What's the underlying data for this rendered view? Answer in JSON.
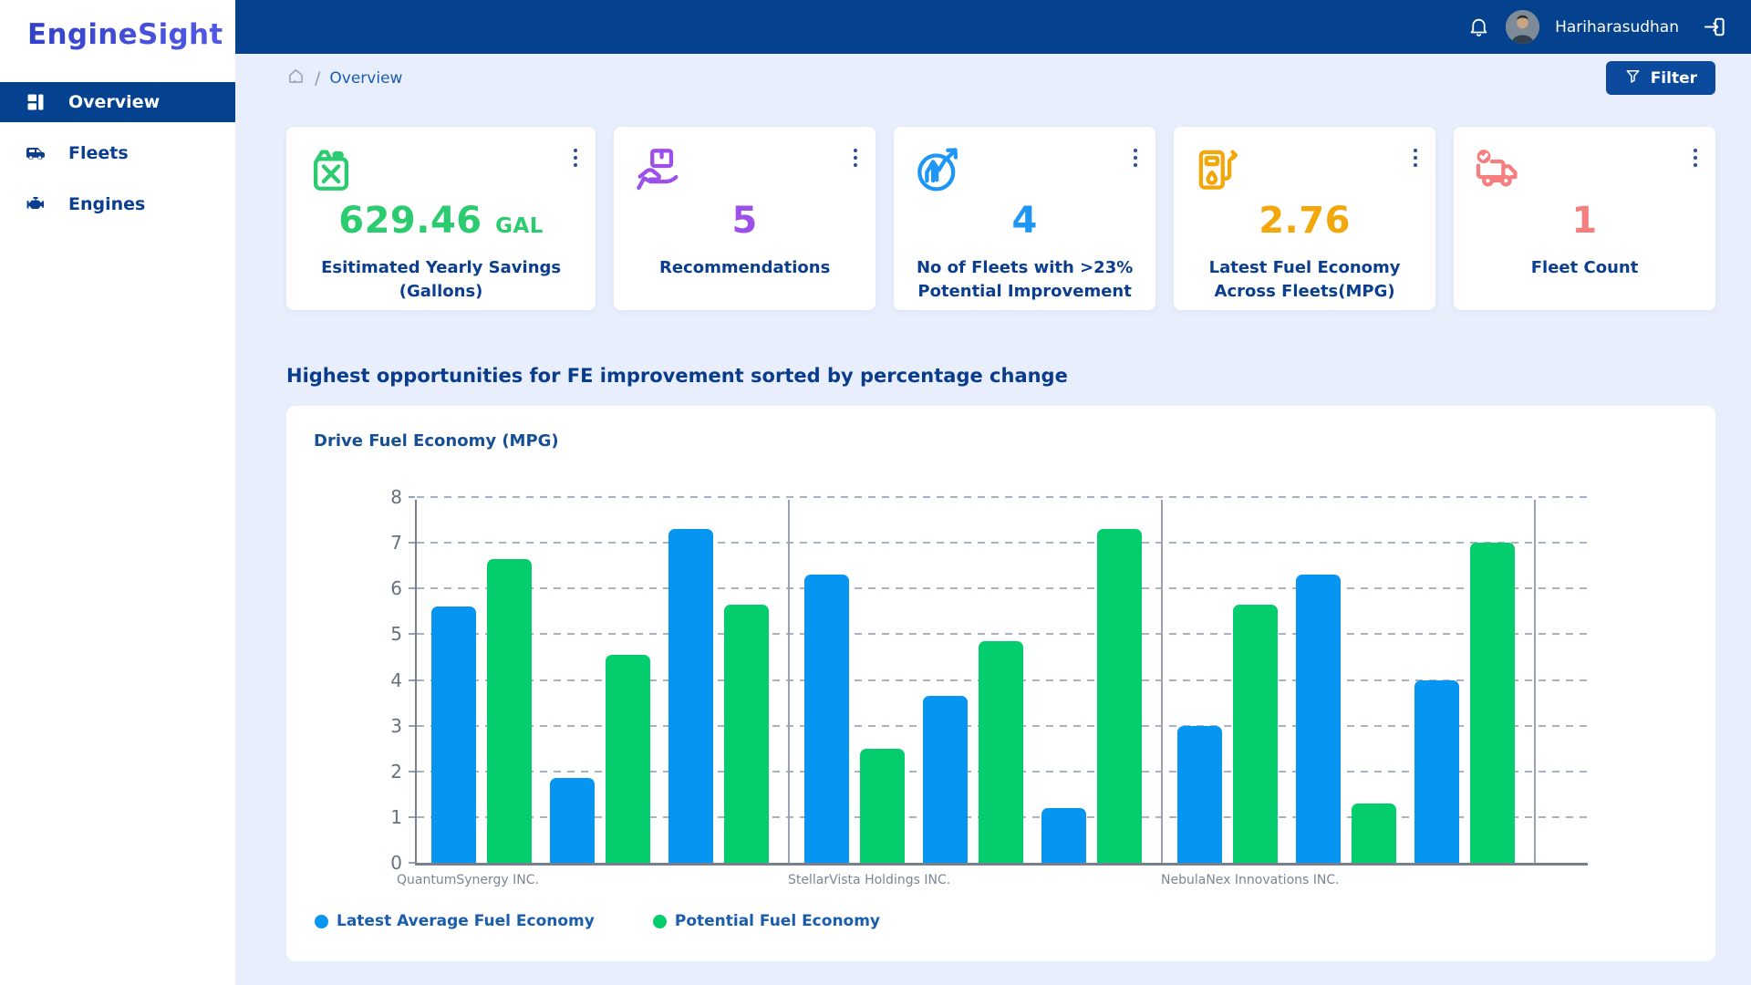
{
  "app": {
    "name": "EngineSight"
  },
  "header": {
    "user_name": "Hariharasudhan"
  },
  "sidebar": {
    "items": [
      {
        "label": "Overview",
        "active": true
      },
      {
        "label": "Fleets",
        "active": false
      },
      {
        "label": "Engines",
        "active": false
      }
    ]
  },
  "breadcrumb": {
    "separator": "/",
    "current": "Overview"
  },
  "toolbar": {
    "filter_label": "Filter"
  },
  "stat_cards": [
    {
      "value": "629.46",
      "unit": "GAL",
      "label": "Esitimated Yearly Savings (Gallons)",
      "color": "#2BCB6F",
      "icon": "fuel-can-icon"
    },
    {
      "value": "5",
      "unit": "",
      "label": "Recommendations",
      "color": "#9C4FE9",
      "icon": "hand-box-icon"
    },
    {
      "value": "4",
      "unit": "",
      "label": "No of Fleets with >23% Potential Improvement",
      "color": "#1E96F5",
      "icon": "growth-chart-icon"
    },
    {
      "value": "2.76",
      "unit": "",
      "label": "Latest Fuel Economy Across Fleets(MPG)",
      "color": "#F2A70B",
      "icon": "fuel-pump-icon"
    },
    {
      "value": "1",
      "unit": "",
      "label": "Fleet Count",
      "color": "#F57F7F",
      "icon": "truck-check-icon"
    }
  ],
  "section": {
    "heading": "Highest opportunities for FE improvement sorted by percentage change"
  },
  "chart_data": {
    "type": "bar",
    "title": "Drive Fuel Economy (MPG)",
    "xlabel": "",
    "ylabel": "",
    "ylim": [
      0,
      8
    ],
    "ytick_step": 1,
    "grid": "horizontal-dashed",
    "legend_position": "bottom-left",
    "series": [
      {
        "name": "Latest Average Fuel Economy",
        "color": "#0795F2"
      },
      {
        "name": "Potential Fuel Economy",
        "color": "#03CD6C"
      }
    ],
    "groups": [
      {
        "label": "QuantumSynergy INC.",
        "pairs": [
          [
            5.6,
            6.65
          ],
          [
            1.85,
            4.55
          ],
          [
            7.3,
            5.65
          ]
        ]
      },
      {
        "label": "StellarVista Holdings INC.",
        "pairs": [
          [
            6.3,
            2.5
          ],
          [
            3.65,
            4.85
          ],
          [
            1.2,
            7.3
          ]
        ]
      },
      {
        "label": "NebulaNex Innovations INC.",
        "pairs": [
          [
            3.0,
            5.65
          ],
          [
            6.3,
            1.3
          ],
          [
            4.0,
            7.0
          ]
        ]
      }
    ]
  }
}
